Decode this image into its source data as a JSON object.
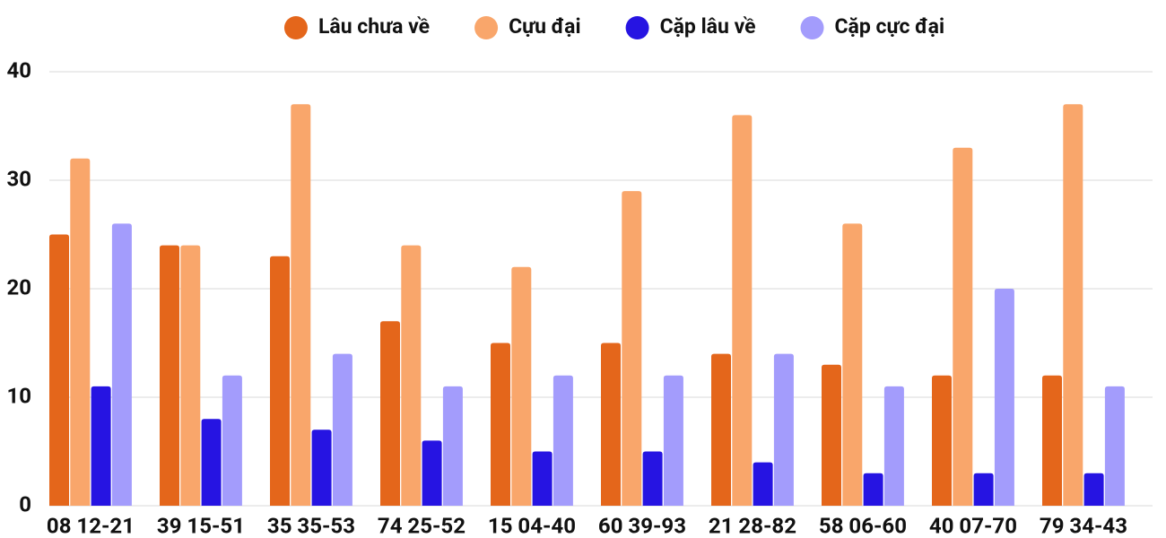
{
  "chart_data": {
    "type": "bar",
    "categories": [
      "08 12-21",
      "39 15-51",
      "35 35-53",
      "74 25-52",
      "15 04-40",
      "60 39-93",
      "21 28-82",
      "58 06-60",
      "40 07-70",
      "79 34-43"
    ],
    "series": [
      {
        "name": "Lâu chưa về",
        "color": "#e4661b",
        "values": [
          25,
          24,
          23,
          17,
          15,
          15,
          14,
          13,
          12,
          12
        ]
      },
      {
        "name": "Cựu đại",
        "color": "#f9a66b",
        "values": [
          32,
          24,
          37,
          24,
          22,
          29,
          36,
          26,
          33,
          37
        ]
      },
      {
        "name": "Cặp lâu về",
        "color": "#2614e2",
        "values": [
          11,
          8,
          7,
          6,
          5,
          5,
          4,
          3,
          3,
          3
        ]
      },
      {
        "name": "Cặp cực đại",
        "color": "#a39cfc",
        "values": [
          26,
          12,
          14,
          11,
          12,
          12,
          14,
          11,
          20,
          11
        ]
      }
    ],
    "ylim": [
      0,
      40
    ],
    "yticks": [
      0,
      10,
      20,
      30,
      40
    ],
    "grid": true,
    "legend": "top"
  }
}
